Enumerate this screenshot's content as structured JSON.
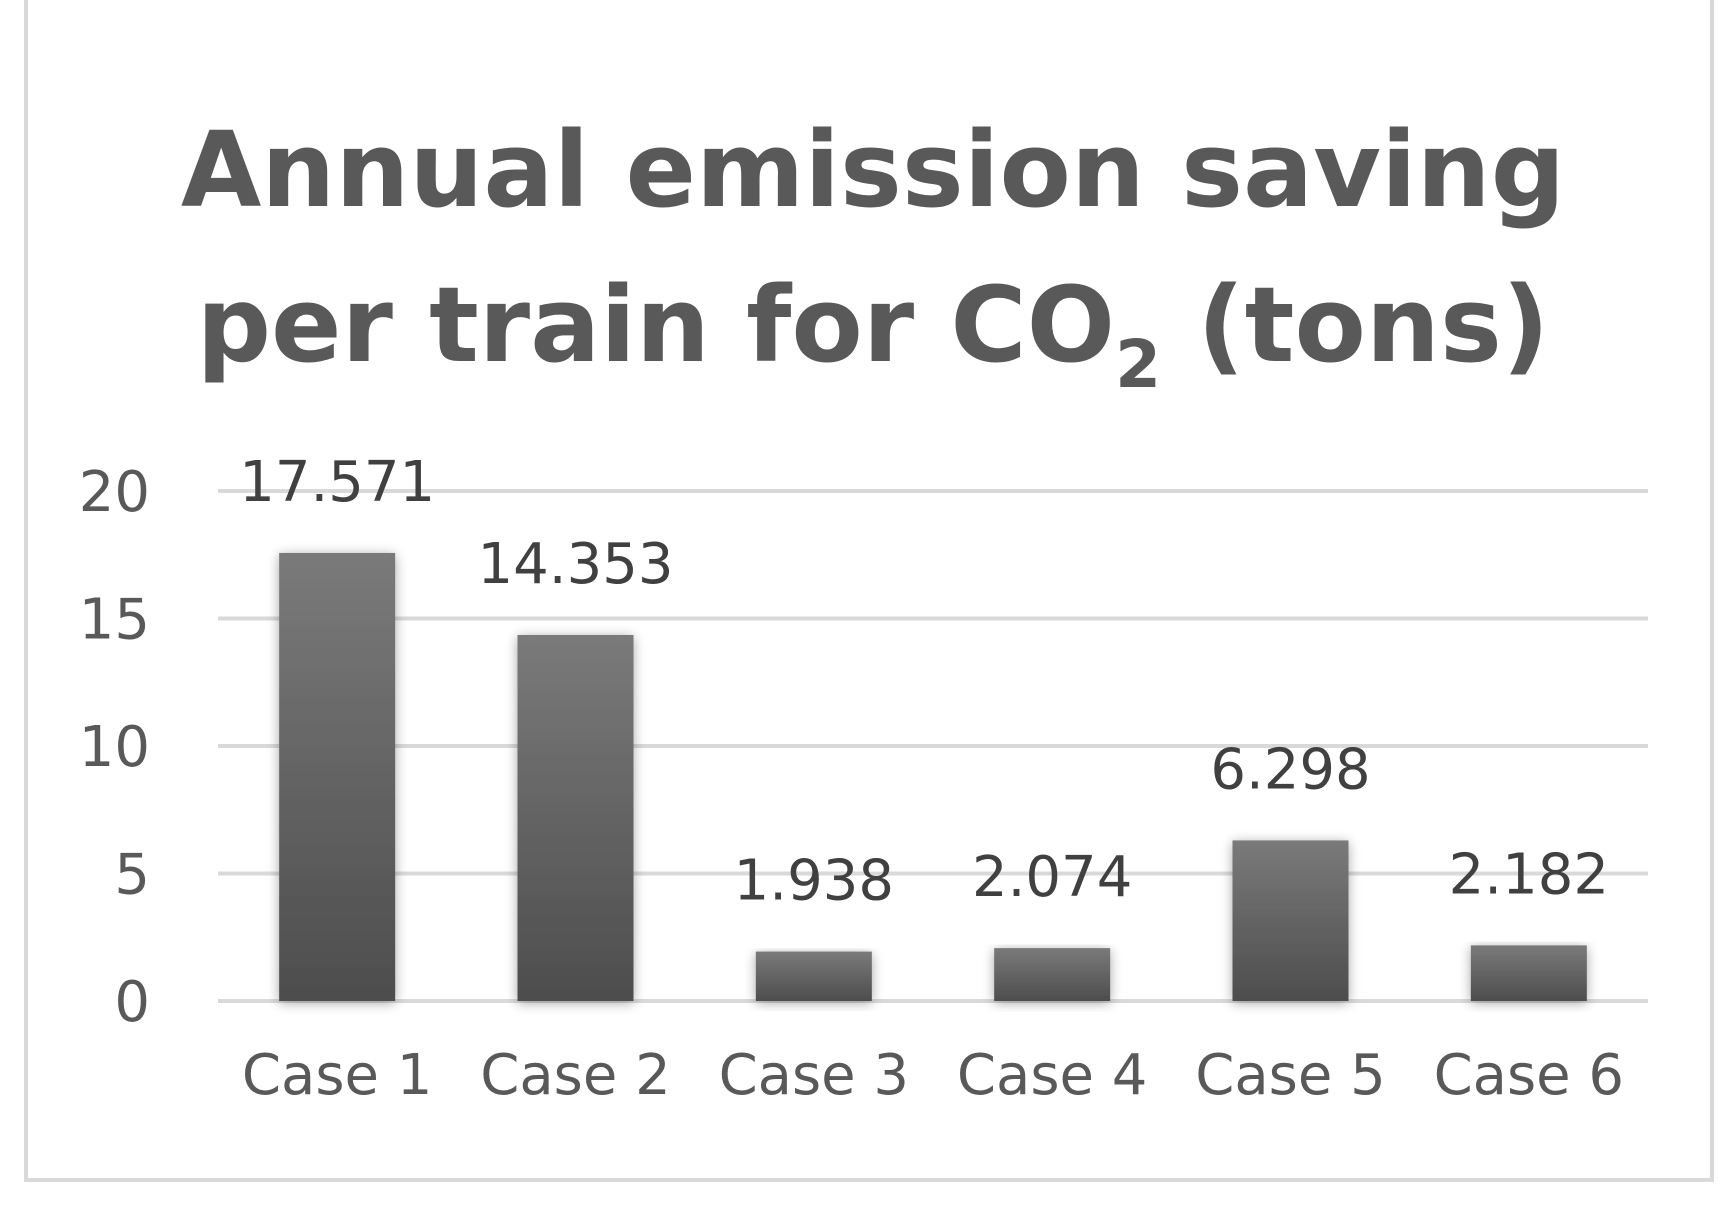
{
  "chart_data": {
    "type": "bar",
    "title_line1": "Annual emission saving",
    "title_line2_prefix": "per train for CO",
    "title_line2_subscript": "2",
    "title_line2_suffix": " (tons)",
    "categories": [
      "Case 1",
      "Case 2",
      "Case 3",
      "Case 4",
      "Case 5",
      "Case 6"
    ],
    "values": [
      17.571,
      14.353,
      1.938,
      2.074,
      6.298,
      2.182
    ],
    "value_labels": [
      "17.571",
      "14.353",
      "1.938",
      "2.074",
      "6.298",
      "2.182"
    ],
    "ylim": [
      0,
      20
    ],
    "yticks": [
      0,
      5,
      10,
      15,
      20
    ],
    "xlabel": "",
    "ylabel": "",
    "grid": true,
    "legend": "none",
    "colors": {
      "bar_top": "#7a7a7a",
      "bar_bottom": "#4d4d4d",
      "grid": "#d9d9d9",
      "text": "#595959"
    }
  }
}
